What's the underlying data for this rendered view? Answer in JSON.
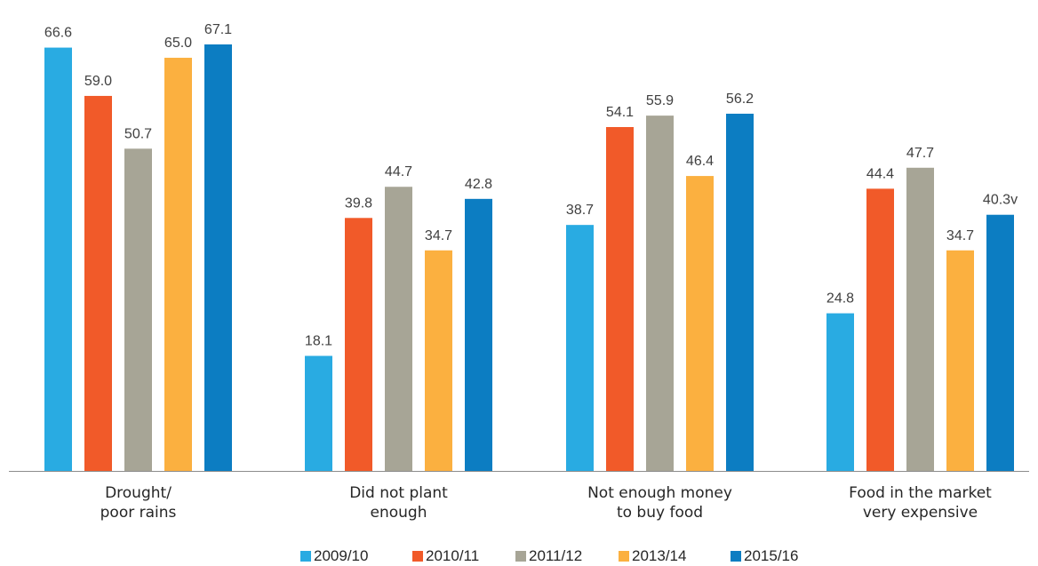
{
  "chart_data": {
    "type": "bar",
    "title": "",
    "xlabel": "",
    "ylabel": "",
    "ylim": [
      0,
      70
    ],
    "grid": false,
    "legend_position": "bottom",
    "categories": [
      [
        "Drought/",
        "poor rains"
      ],
      [
        "Did not plant",
        "enough"
      ],
      [
        "Not enough money",
        "to buy food"
      ],
      [
        "Food in the market",
        "very expensive"
      ]
    ],
    "series": [
      {
        "name": "2009/10",
        "color": "#29ABE2",
        "values": [
          66.6,
          18.1,
          38.7,
          24.8
        ],
        "labels": [
          "66.6",
          "18.1",
          "38.7",
          "24.8"
        ]
      },
      {
        "name": "2010/11",
        "color": "#F15A29",
        "values": [
          59.0,
          39.8,
          54.1,
          44.4
        ],
        "labels": [
          "59.0",
          "39.8",
          "54.1",
          "44.4"
        ]
      },
      {
        "name": "2011/12",
        "color": "#A7A596",
        "values": [
          50.7,
          44.7,
          55.9,
          47.7
        ],
        "labels": [
          "50.7",
          "44.7",
          "55.9",
          "47.7"
        ]
      },
      {
        "name": "2013/14",
        "color": "#FBB040",
        "values": [
          65.0,
          34.7,
          46.4,
          34.7
        ],
        "labels": [
          "65.0",
          "34.7",
          "46.4",
          "34.7"
        ]
      },
      {
        "name": "2015/16",
        "color": "#0C7DC2",
        "values": [
          67.1,
          42.8,
          56.2,
          40.3
        ],
        "labels": [
          "67.1",
          "42.8",
          "56.2",
          "40.3v"
        ]
      }
    ]
  }
}
